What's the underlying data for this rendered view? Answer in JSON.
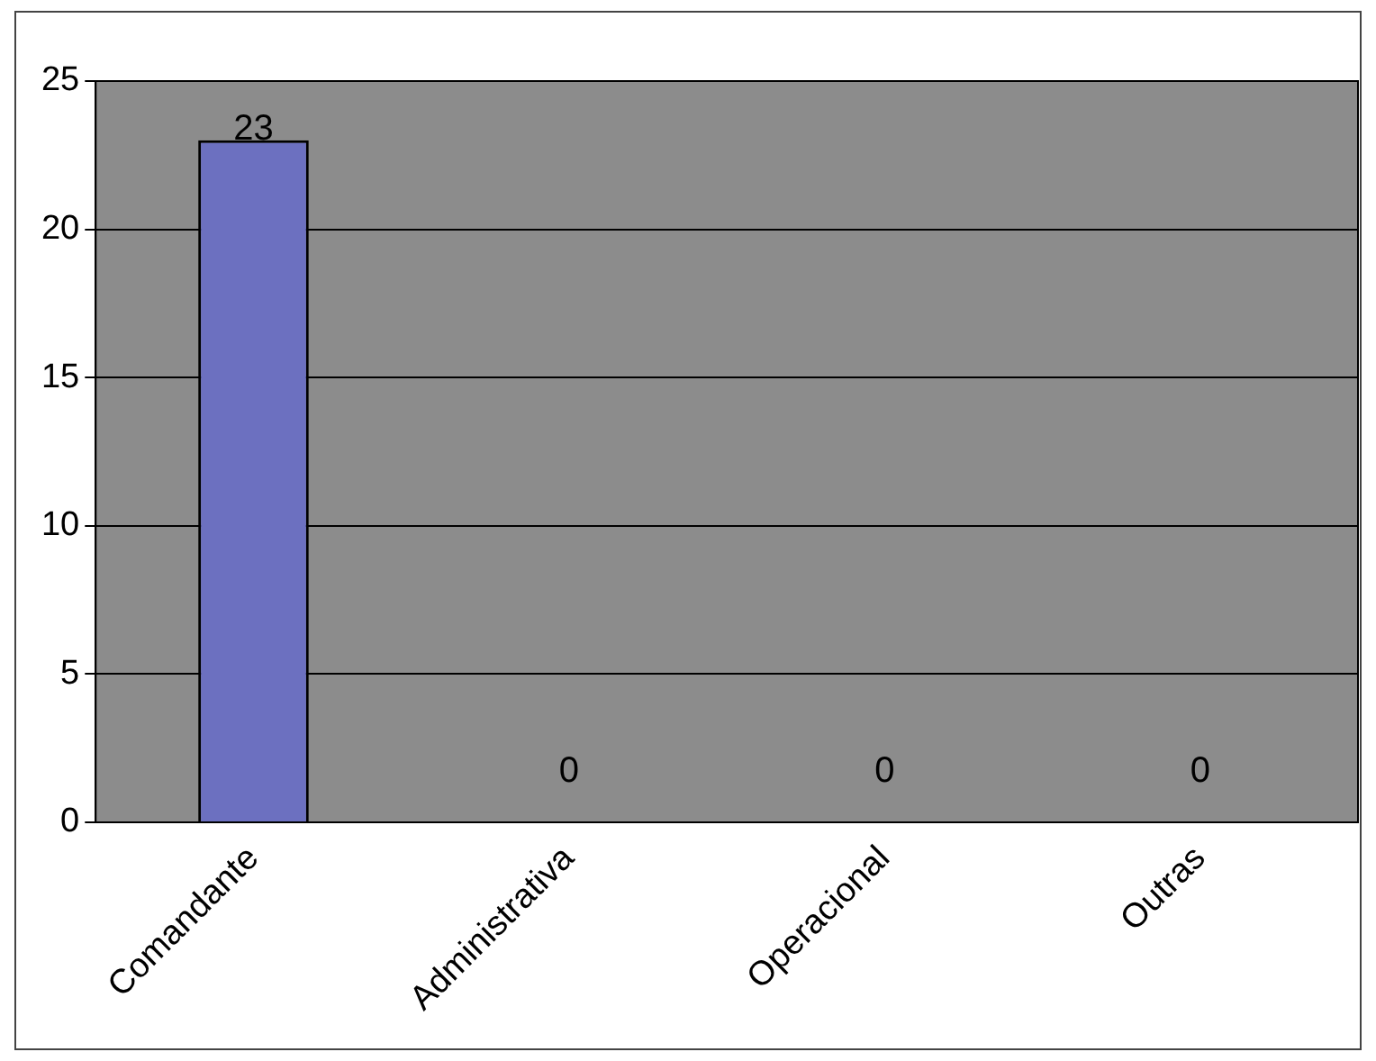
{
  "chart_data": {
    "type": "bar",
    "categories": [
      "Comandante",
      "Administrativa",
      "Operacional",
      "Outras"
    ],
    "values": [
      23,
      0,
      0,
      0
    ],
    "color": "#6c70c0",
    "ylim": [
      0,
      25
    ],
    "yticks": [
      0,
      5,
      10,
      15,
      20,
      25
    ],
    "grid": "y",
    "data_labels": true
  }
}
